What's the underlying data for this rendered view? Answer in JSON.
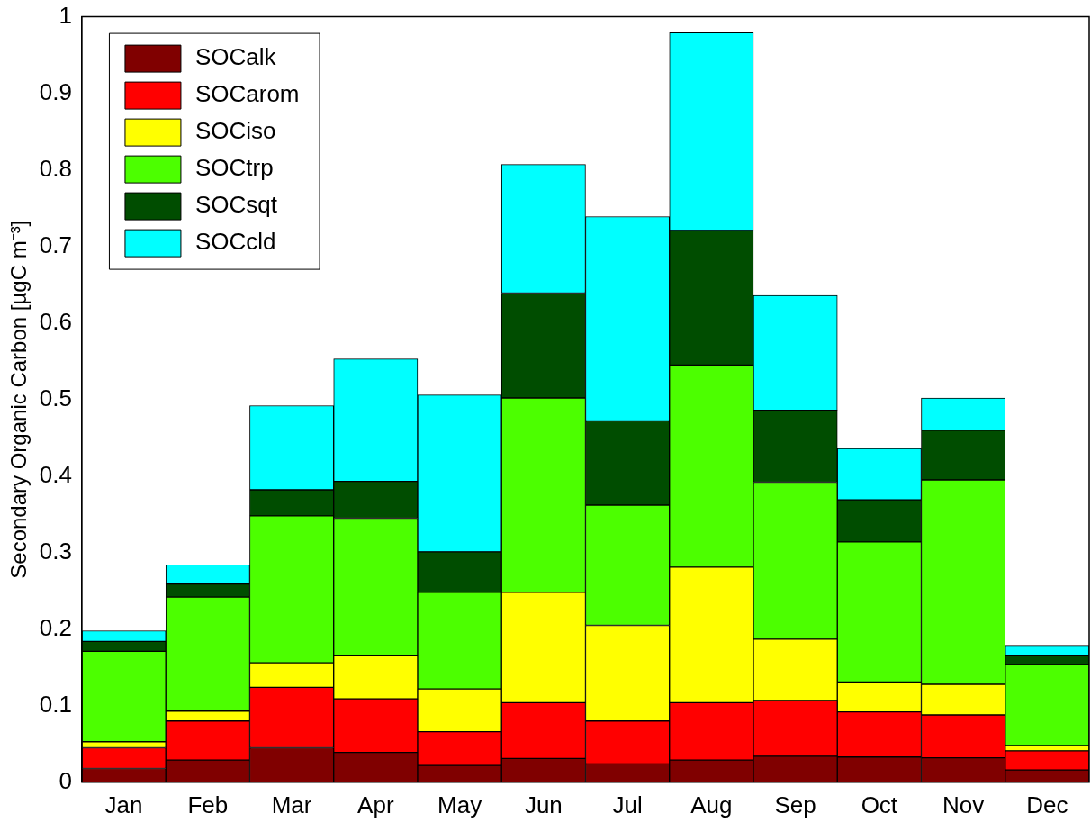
{
  "chart_data": {
    "type": "bar",
    "stacked": true,
    "ylabel": "Secondary Organic Carbon [µgC m⁻³]",
    "categories": [
      "Jan",
      "Feb",
      "Mar",
      "Apr",
      "May",
      "Jun",
      "Jul",
      "Aug",
      "Sep",
      "Oct",
      "Nov",
      "Dec"
    ],
    "series": [
      {
        "name": "SOCalk",
        "color": "#800000",
        "values": [
          0.018,
          0.029,
          0.045,
          0.039,
          0.022,
          0.031,
          0.024,
          0.029,
          0.034,
          0.033,
          0.032,
          0.016
        ]
      },
      {
        "name": "SOCarom",
        "color": "#ff0000",
        "values": [
          0.027,
          0.051,
          0.079,
          0.07,
          0.044,
          0.073,
          0.056,
          0.075,
          0.073,
          0.059,
          0.056,
          0.025
        ]
      },
      {
        "name": "SOCiso",
        "color": "#ffff00",
        "values": [
          0.008,
          0.013,
          0.032,
          0.057,
          0.056,
          0.144,
          0.125,
          0.177,
          0.08,
          0.039,
          0.04,
          0.007
        ]
      },
      {
        "name": "SOCtrp",
        "color": "#4cff00",
        "values": [
          0.118,
          0.149,
          0.192,
          0.179,
          0.126,
          0.254,
          0.157,
          0.264,
          0.205,
          0.183,
          0.267,
          0.106
        ]
      },
      {
        "name": "SOCsqt",
        "color": "#004d00",
        "values": [
          0.013,
          0.017,
          0.034,
          0.048,
          0.053,
          0.137,
          0.11,
          0.176,
          0.094,
          0.055,
          0.065,
          0.012
        ]
      },
      {
        "name": "SOCcld",
        "color": "#00ffff",
        "values": [
          0.014,
          0.025,
          0.11,
          0.16,
          0.205,
          0.168,
          0.267,
          0.258,
          0.15,
          0.067,
          0.042,
          0.013
        ]
      }
    ],
    "ylim": [
      0,
      1
    ],
    "yticks": [
      0,
      0.1,
      0.2,
      0.3,
      0.4,
      0.5,
      0.6,
      0.7,
      0.8,
      0.9,
      1
    ],
    "grid": false,
    "legend": "top left"
  }
}
